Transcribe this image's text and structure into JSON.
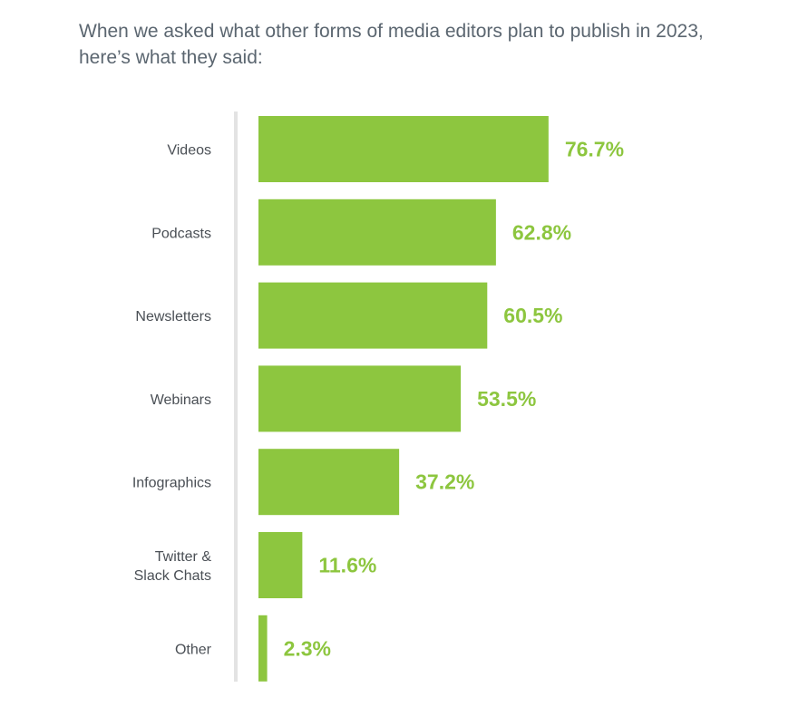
{
  "intro_text": "When we asked what other forms of media editors plan to publish in 2023, here’s what they said:",
  "colors": {
    "bar": "#8dc63f",
    "value_label": "#8dc63f",
    "axis_line": "#e3e3e3",
    "category_text": "#4a4f55",
    "intro_text": "#5b6670"
  },
  "chart_data": {
    "type": "bar",
    "orientation": "horizontal",
    "categories": [
      [
        "Videos"
      ],
      [
        "Podcasts"
      ],
      [
        "Newsletters"
      ],
      [
        "Webinars"
      ],
      [
        "Infographics"
      ],
      [
        "Twitter &",
        "Slack Chats"
      ],
      [
        "Other"
      ]
    ],
    "values": [
      76.7,
      62.8,
      60.5,
      53.5,
      37.2,
      11.6,
      2.3
    ],
    "value_labels": [
      "76.7%",
      "62.8%",
      "60.5%",
      "53.5%",
      "37.2%",
      "11.6%",
      "2.3%"
    ],
    "unit": "%",
    "xlim": [
      0,
      100
    ],
    "grid": false,
    "legend": "none"
  }
}
